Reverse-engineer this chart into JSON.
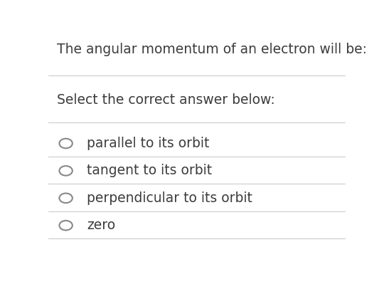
{
  "title": "The angular momentum of an electron will be:",
  "subtitle": "Select the correct answer below:",
  "options": [
    "parallel to its orbit",
    "tangent to its orbit",
    "perpendicular to its orbit",
    "zero"
  ],
  "bg_color": "#ffffff",
  "text_color": "#3d3d3d",
  "line_color": "#cccccc",
  "title_fontsize": 13.5,
  "subtitle_fontsize": 13.5,
  "option_fontsize": 13.5,
  "circle_color": "#888888",
  "fig_width": 5.4,
  "fig_height": 3.99
}
